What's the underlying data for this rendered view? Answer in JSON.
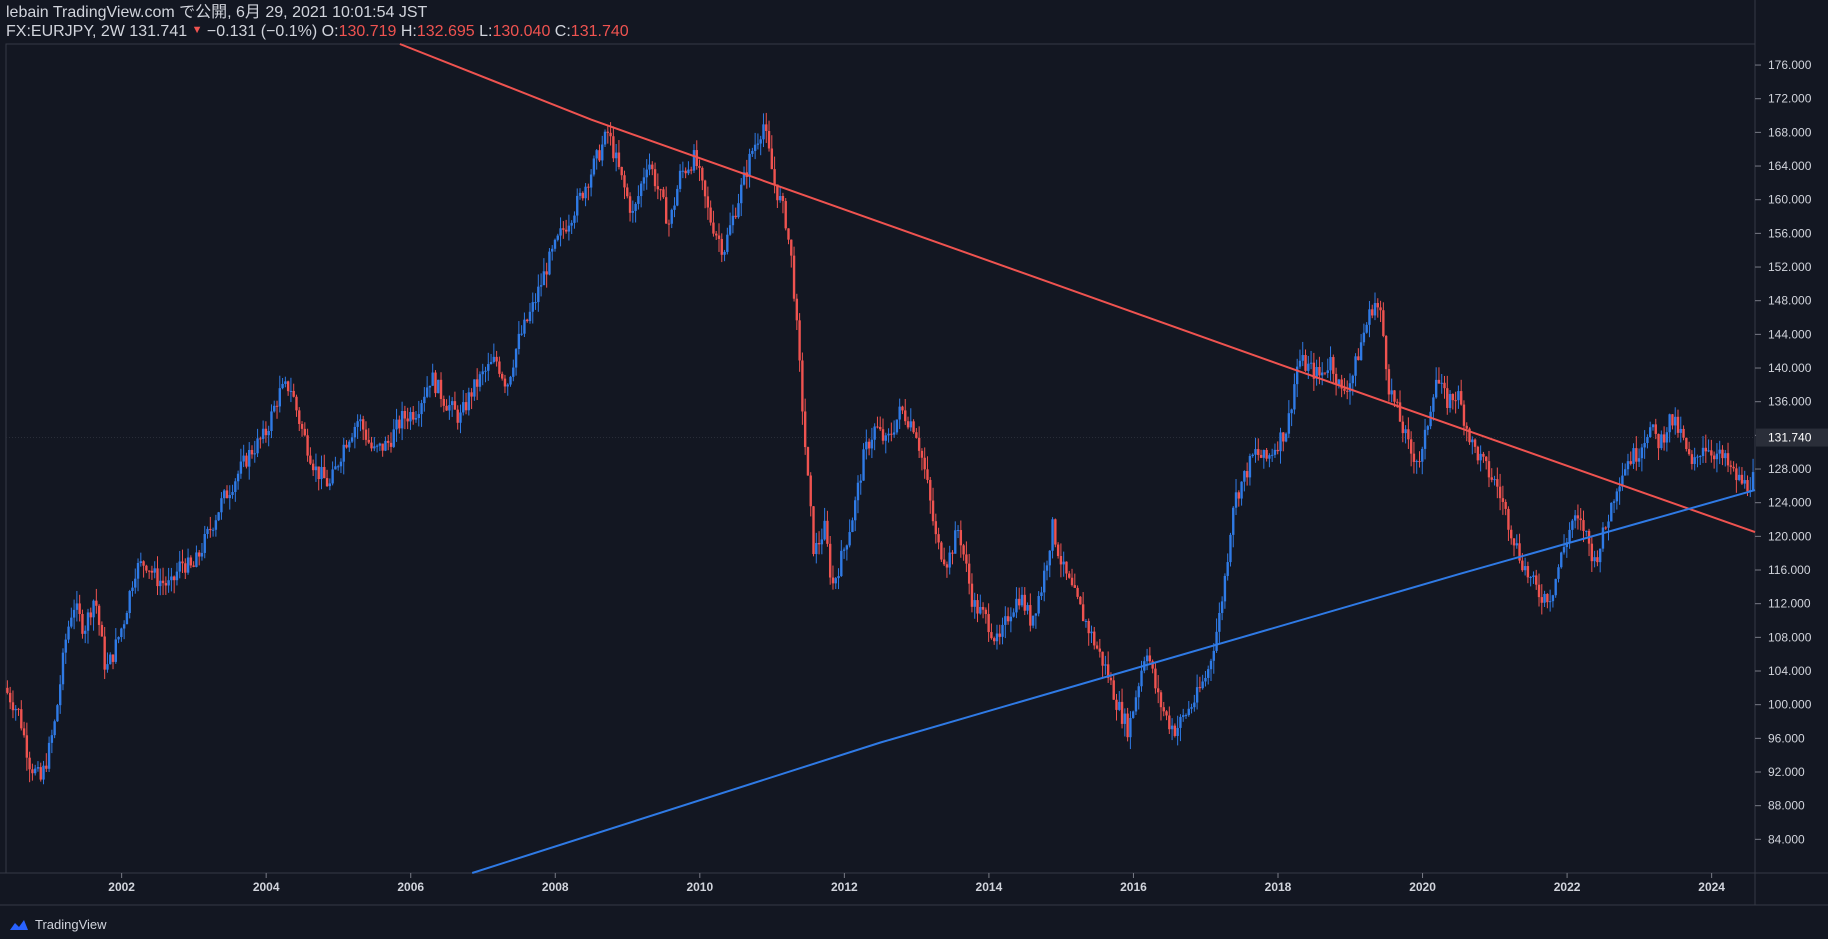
{
  "header": {
    "line1": "lebain TradingView.com で公開, 6月 29, 2021 10:01:54 JST",
    "symbol": "FX:EURJPY, 2W 131.741",
    "change": "−0.131 (−0.1%)",
    "o_label": "O:",
    "o_value": "130.719",
    "h_label": "H:",
    "h_value": "132.695",
    "l_label": "L:",
    "l_value": "130.040",
    "c_label": "C:",
    "c_value": "131.740"
  },
  "footer": {
    "brand": "TradingView"
  },
  "colors": {
    "up": "#2f7ae5",
    "down": "#ef5350",
    "background": "#131722",
    "grid": "#2a2e39",
    "text": "#d1d4dc"
  },
  "chart_data": {
    "type": "candlestick",
    "symbol": "FX:EURJPY",
    "interval": "2W",
    "last_price": 131.74,
    "x_range": [
      2000.4,
      2024.6
    ],
    "y_range": [
      80.0,
      178.5
    ],
    "y_ticks": [
      84,
      88,
      92,
      96,
      100,
      104,
      108,
      112,
      116,
      120,
      124,
      128,
      132,
      136,
      140,
      144,
      148,
      152,
      156,
      160,
      164,
      168,
      172,
      176
    ],
    "y_tick_labels": [
      "84.000",
      "88.000",
      "92.000",
      "96.000",
      "100.000",
      "104.000",
      "108.000",
      "112.000",
      "116.000",
      "120.000",
      "124.000",
      "128.000",
      "132.000",
      "136.000",
      "140.000",
      "144.000",
      "148.000",
      "152.000",
      "156.000",
      "160.000",
      "164.000",
      "168.000",
      "172.000",
      "176.000"
    ],
    "last_price_label": "131.740",
    "x_ticks": [
      2002,
      2004,
      2006,
      2008,
      2010,
      2012,
      2014,
      2016,
      2018,
      2020,
      2022,
      2024
    ],
    "x_tick_labels": [
      "2002",
      "2004",
      "2006",
      "2008",
      "2010",
      "2012",
      "2014",
      "2016",
      "2018",
      "2020",
      "2022",
      "2024"
    ],
    "price_path": [
      [
        2000.4,
        102
      ],
      [
        2000.6,
        99
      ],
      [
        2000.75,
        93
      ],
      [
        2000.9,
        91
      ],
      [
        2001.0,
        94
      ],
      [
        2001.1,
        98
      ],
      [
        2001.25,
        108
      ],
      [
        2001.35,
        112
      ],
      [
        2001.5,
        109
      ],
      [
        2001.65,
        113
      ],
      [
        2001.8,
        104
      ],
      [
        2001.9,
        106
      ],
      [
        2002.05,
        110
      ],
      [
        2002.2,
        116
      ],
      [
        2002.35,
        117
      ],
      [
        2002.5,
        115
      ],
      [
        2002.7,
        114
      ],
      [
        2002.85,
        117
      ],
      [
        2003.0,
        116
      ],
      [
        2003.2,
        120
      ],
      [
        2003.4,
        124
      ],
      [
        2003.6,
        127
      ],
      [
        2003.8,
        130
      ],
      [
        2004.0,
        132
      ],
      [
        2004.2,
        137
      ],
      [
        2004.35,
        138
      ],
      [
        2004.5,
        133
      ],
      [
        2004.7,
        128
      ],
      [
        2004.9,
        126
      ],
      [
        2005.1,
        131
      ],
      [
        2005.3,
        134
      ],
      [
        2005.5,
        130
      ],
      [
        2005.7,
        131
      ],
      [
        2005.9,
        134
      ],
      [
        2006.1,
        135
      ],
      [
        2006.3,
        139
      ],
      [
        2006.5,
        136
      ],
      [
        2006.7,
        134
      ],
      [
        2006.85,
        137
      ],
      [
        2007.0,
        139
      ],
      [
        2007.2,
        141
      ],
      [
        2007.35,
        138
      ],
      [
        2007.5,
        143
      ],
      [
        2007.7,
        147
      ],
      [
        2007.9,
        152
      ],
      [
        2008.1,
        156
      ],
      [
        2008.35,
        160
      ],
      [
        2008.55,
        164
      ],
      [
        2008.75,
        168
      ],
      [
        2008.95,
        162
      ],
      [
        2009.1,
        158
      ],
      [
        2009.3,
        165
      ],
      [
        2009.45,
        161
      ],
      [
        2009.6,
        157
      ],
      [
        2009.75,
        163
      ],
      [
        2009.95,
        165
      ],
      [
        2010.15,
        158
      ],
      [
        2010.35,
        154
      ],
      [
        2010.55,
        160
      ],
      [
        2010.75,
        166
      ],
      [
        2010.9,
        169
      ],
      [
        2011.05,
        162
      ],
      [
        2011.2,
        158
      ],
      [
        2011.3,
        152
      ],
      [
        2011.4,
        140
      ],
      [
        2011.5,
        128
      ],
      [
        2011.6,
        118
      ],
      [
        2011.75,
        121
      ],
      [
        2011.85,
        114
      ],
      [
        2012.0,
        118
      ],
      [
        2012.15,
        123
      ],
      [
        2012.3,
        130
      ],
      [
        2012.45,
        133
      ],
      [
        2012.6,
        131
      ],
      [
        2012.8,
        135
      ],
      [
        2013.0,
        133
      ],
      [
        2013.15,
        127
      ],
      [
        2013.3,
        119
      ],
      [
        2013.45,
        117
      ],
      [
        2013.6,
        121
      ],
      [
        2013.8,
        112
      ],
      [
        2014.0,
        110
      ],
      [
        2014.15,
        107
      ],
      [
        2014.3,
        111
      ],
      [
        2014.45,
        113
      ],
      [
        2014.6,
        110
      ],
      [
        2014.75,
        114
      ],
      [
        2014.9,
        121
      ],
      [
        2015.05,
        116
      ],
      [
        2015.2,
        113
      ],
      [
        2015.35,
        110
      ],
      [
        2015.5,
        107
      ],
      [
        2015.65,
        104
      ],
      [
        2015.8,
        100
      ],
      [
        2015.95,
        97
      ],
      [
        2016.1,
        103
      ],
      [
        2016.2,
        107
      ],
      [
        2016.35,
        101
      ],
      [
        2016.5,
        98
      ],
      [
        2016.6,
        97
      ],
      [
        2016.75,
        99
      ],
      [
        2016.9,
        101
      ],
      [
        2017.05,
        104
      ],
      [
        2017.2,
        110
      ],
      [
        2017.3,
        116
      ],
      [
        2017.4,
        124
      ],
      [
        2017.55,
        127
      ],
      [
        2017.7,
        130
      ],
      [
        2017.85,
        129
      ],
      [
        2018.0,
        131
      ],
      [
        2018.15,
        133
      ],
      [
        2018.3,
        141
      ],
      [
        2018.45,
        140
      ],
      [
        2018.6,
        139
      ],
      [
        2018.75,
        141
      ],
      [
        2018.9,
        137
      ],
      [
        2019.05,
        139
      ],
      [
        2019.2,
        144
      ],
      [
        2019.35,
        148
      ],
      [
        2019.45,
        146
      ],
      [
        2019.55,
        138
      ],
      [
        2019.7,
        134
      ],
      [
        2019.85,
        130
      ],
      [
        2020.0,
        129
      ],
      [
        2020.1,
        134
      ],
      [
        2020.2,
        139
      ],
      [
        2020.35,
        136
      ],
      [
        2020.5,
        137
      ],
      [
        2020.7,
        131
      ],
      [
        2020.9,
        128
      ],
      [
        2021.05,
        126
      ],
      [
        2021.2,
        122
      ],
      [
        2021.35,
        118
      ],
      [
        2021.5,
        115
      ],
      [
        2021.65,
        113
      ],
      [
        2021.8,
        113
      ],
      [
        2021.95,
        118
      ],
      [
        2022.1,
        122
      ],
      [
        2022.25,
        121
      ],
      [
        2022.4,
        117
      ],
      [
        2022.55,
        121
      ],
      [
        2022.7,
        126
      ],
      [
        2022.85,
        129
      ],
      [
        2023.0,
        130
      ],
      [
        2023.15,
        133
      ],
      [
        2023.3,
        131
      ],
      [
        2023.45,
        134
      ],
      [
        2023.6,
        132
      ],
      [
        2023.75,
        128
      ],
      [
        2023.9,
        131
      ],
      [
        2024.05,
        130
      ],
      [
        2024.2,
        129
      ],
      [
        2024.35,
        127
      ],
      [
        2024.5,
        126
      ],
      [
        2024.6,
        127
      ]
    ],
    "trendlines": [
      {
        "name": "",
        "color": "#ef5350",
        "points": [
          [
            2005.85,
            178.5
          ],
          [
            2008.5,
            169.5
          ],
          [
            2014.9,
            150
          ],
          [
            2018.0,
            140.5
          ],
          [
            2024.6,
            120.5
          ]
        ]
      },
      {
        "name": "",
        "color": "#2f7ae5",
        "points": [
          [
            2006.85,
            80.0
          ],
          [
            2012.5,
            95.5
          ],
          [
            2020.5,
            115.5
          ],
          [
            2024.6,
            125.5
          ]
        ]
      }
    ]
  }
}
